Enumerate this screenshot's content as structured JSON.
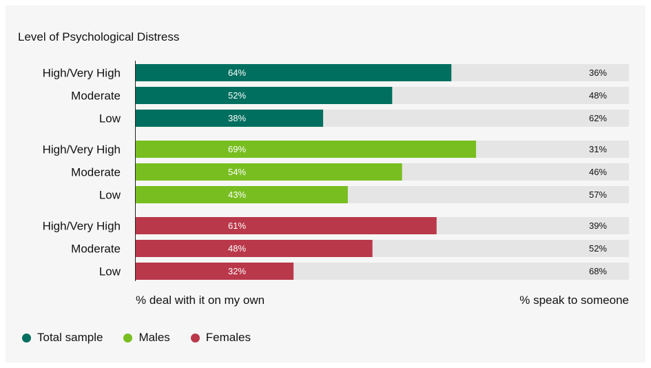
{
  "chart_data": {
    "type": "bar",
    "orientation": "horizontal",
    "stacked": true,
    "title": "Level of Psychological Distress",
    "left_axis_note": "% deal with it on my own",
    "right_axis_note": "% speak to someone",
    "categories": [
      "High/Very High",
      "Moderate",
      "Low"
    ],
    "xlim": [
      0,
      100
    ],
    "grid": false,
    "legend_position": "bottom-left",
    "remainder_color": "#e5e5e5",
    "groups": [
      {
        "name": "Total sample",
        "color": "#006f5f",
        "deal_own": [
          64,
          52,
          38
        ],
        "deal_own_labels": [
          "64%",
          "52%",
          "38%"
        ],
        "speak": [
          36,
          48,
          62
        ],
        "speak_labels": [
          "36%",
          "48%",
          "62%"
        ]
      },
      {
        "name": "Males",
        "color": "#78be20",
        "deal_own": [
          69,
          54,
          43
        ],
        "deal_own_labels": [
          "69%",
          "54%",
          "43%"
        ],
        "speak": [
          31,
          46,
          57
        ],
        "speak_labels": [
          "31%",
          "46%",
          "57%"
        ]
      },
      {
        "name": "Females",
        "color": "#b9384a",
        "deal_own": [
          61,
          48,
          32
        ],
        "deal_own_labels": [
          "61%",
          "48%",
          "32%"
        ],
        "speak": [
          39,
          52,
          68
        ],
        "speak_labels": [
          "39%",
          "52%",
          "68%"
        ]
      }
    ]
  }
}
